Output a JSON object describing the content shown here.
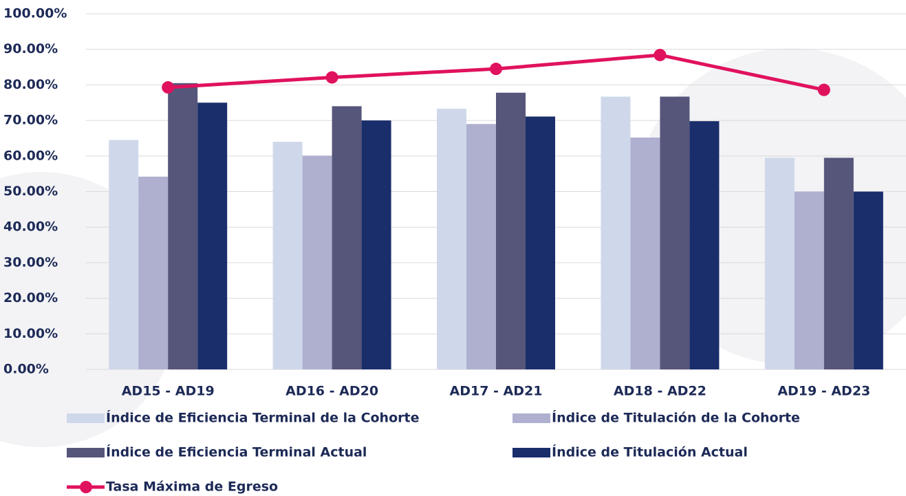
{
  "chart_data": {
    "type": "bar",
    "categories": [
      "AD15 - AD19",
      "AD16 - AD20",
      "AD17 - AD21",
      "AD18 - AD22",
      "AD19 - AD23"
    ],
    "series": [
      {
        "name": "Índice de Eficiencia Terminal de la Cohorte",
        "color": "#cfd8ea",
        "values": [
          64.5,
          64,
          73.3,
          76.7,
          59.5
        ]
      },
      {
        "name": "Índice de Titulación de la Cohorte",
        "color": "#afb0d0",
        "values": [
          54.2,
          60.1,
          69,
          65.2,
          50
        ]
      },
      {
        "name": "Índice de Eficiencia Terminal Actual",
        "color": "#56557a",
        "values": [
          80.5,
          74,
          77.8,
          76.7,
          59.5
        ]
      },
      {
        "name": "Índice de Titulación Actual",
        "color": "#1a2e6c",
        "values": [
          75,
          70,
          71.1,
          69.8,
          50
        ]
      },
      {
        "name": "Tasa Máxima de Egreso",
        "type": "line",
        "color": "#e0125e",
        "values": [
          79.3,
          82.1,
          84.5,
          88.4,
          78.6
        ]
      }
    ],
    "ylim": [
      0,
      100
    ],
    "yticks": [
      {
        "value": 0,
        "label": "0.00%"
      },
      {
        "value": 10,
        "label": "10.00%"
      },
      {
        "value": 20,
        "label": "20.00%"
      },
      {
        "value": 30,
        "label": "30.00%"
      },
      {
        "value": 40,
        "label": "40.00%"
      },
      {
        "value": 50,
        "label": "50.00%"
      },
      {
        "value": 60,
        "label": "60.00%"
      },
      {
        "value": 70,
        "label": "70.00%"
      },
      {
        "value": 80,
        "label": "80.00%"
      },
      {
        "value": 90,
        "label": "90.00%"
      },
      {
        "value": 100,
        "label": "100.00%"
      }
    ],
    "grid": true
  }
}
